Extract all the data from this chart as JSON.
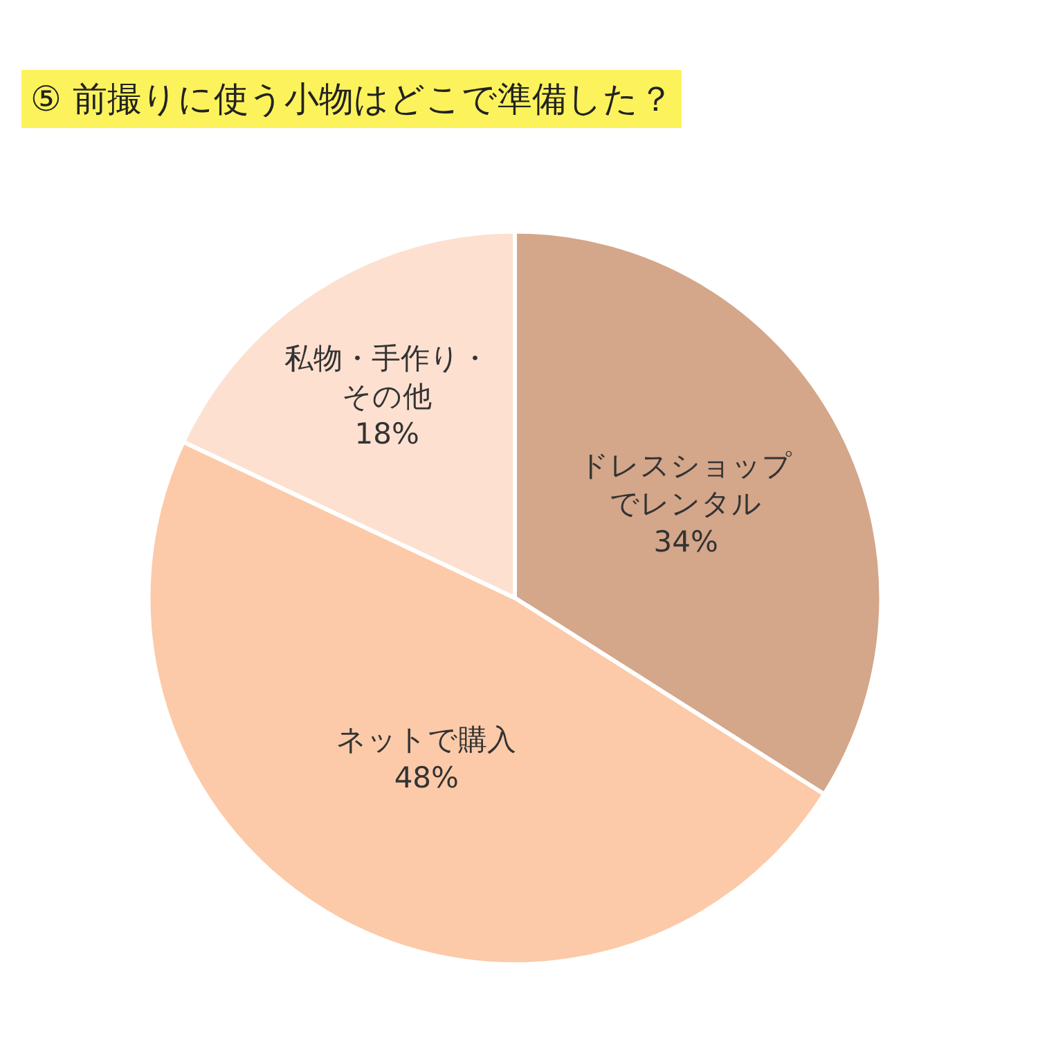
{
  "chart_data": {
    "type": "pie",
    "title": "⑤ 前撮りに使う小物はどこで準備した？",
    "categories": [
      "ドレスショップでレンタル",
      "ネットで購入",
      "私物・手作り・その他"
    ],
    "values": [
      34,
      48,
      18
    ],
    "colors": [
      "#d4a68a",
      "#fccaa8",
      "#fde0d0"
    ],
    "value_labels": [
      "34%",
      "48%",
      "18%"
    ],
    "legend": false
  }
}
